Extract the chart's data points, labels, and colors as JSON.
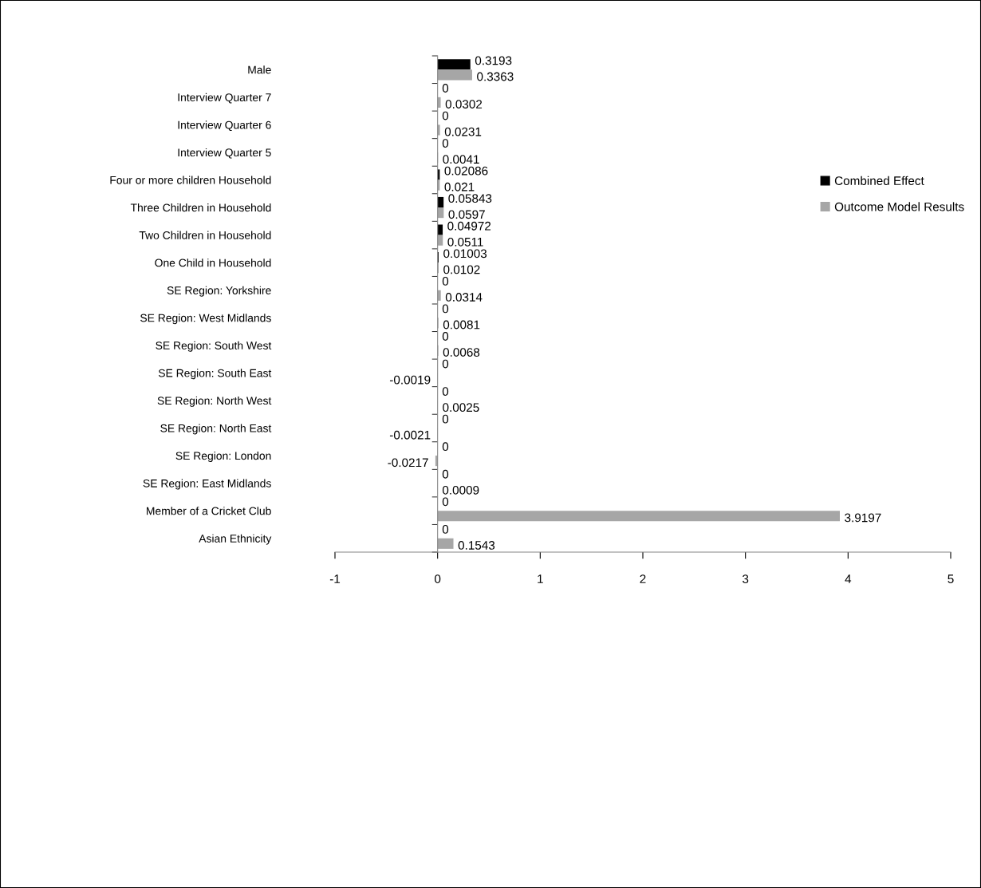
{
  "chart_data": {
    "type": "bar",
    "orientation": "horizontal",
    "categories": [
      "Male",
      "Interview Quarter 7",
      "Interview Quarter 6",
      "Interview Quarter 5",
      "Four or more children Household",
      "Three Children in Household",
      "Two Children in Household",
      "One Child in Household",
      "SE Region: Yorkshire",
      "SE Region: West Midlands",
      "SE Region: South West",
      "SE Region: South East",
      "SE Region: North West",
      "SE Region: North East",
      "SE Region: London",
      "SE Region: East Midlands",
      "Member of a Cricket Club",
      "Asian Ethnicity"
    ],
    "series": [
      {
        "name": "Combined Effect",
        "color": "#000000",
        "values": [
          0.3193,
          0,
          0,
          0,
          0.02086,
          0.05843,
          0.04972,
          0.01003,
          0,
          0,
          0,
          0,
          0,
          0,
          0,
          0,
          0,
          0
        ]
      },
      {
        "name": "Outcome Model Results",
        "color": "#a6a6a6",
        "values": [
          0.3363,
          0.0302,
          0.0231,
          0.0041,
          0.021,
          0.0597,
          0.0511,
          0.0102,
          0.0314,
          0.0081,
          0.0068,
          -0.0019,
          0.0025,
          -0.0021,
          -0.0217,
          0.0009,
          3.9197,
          0.1543
        ]
      }
    ],
    "xlim": [
      -1,
      5
    ],
    "xticks": [
      -1,
      0,
      1,
      2,
      3,
      4,
      5
    ],
    "data_labels": true,
    "legend": "right"
  }
}
